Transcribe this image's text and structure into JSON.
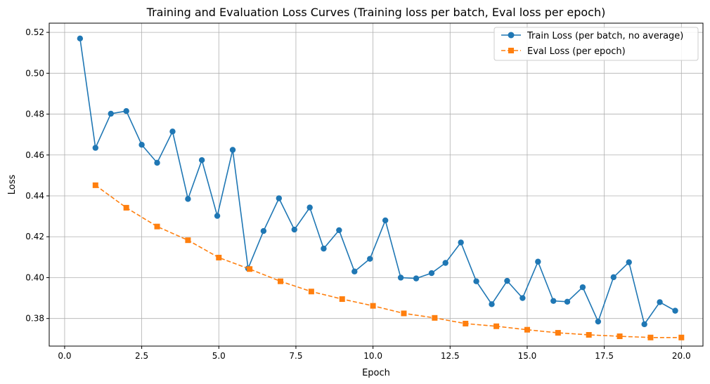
{
  "chart_data": {
    "type": "line",
    "title": "Training and Evaluation Loss Curves (Training loss per batch, Eval loss per epoch)",
    "xlabel": "Epoch",
    "ylabel": "Loss",
    "xlim": [
      -0.5,
      20.7
    ],
    "ylim": [
      0.3665,
      0.5245
    ],
    "xticks": [
      0.0,
      2.5,
      5.0,
      7.5,
      10.0,
      12.5,
      15.0,
      17.5,
      20.0
    ],
    "xtick_labels": [
      "0.0",
      "2.5",
      "5.0",
      "7.5",
      "10.0",
      "12.5",
      "15.0",
      "17.5",
      "20.0"
    ],
    "yticks": [
      0.38,
      0.4,
      0.42,
      0.44,
      0.46,
      0.48,
      0.5,
      0.52
    ],
    "ytick_labels": [
      "0.38",
      "0.40",
      "0.42",
      "0.44",
      "0.46",
      "0.48",
      "0.50",
      "0.52"
    ],
    "grid": true,
    "legend_position": "top-right",
    "series": [
      {
        "name": "Train Loss (per batch, no average)",
        "color": "#1f77b4",
        "line_style": "solid",
        "marker": "circle",
        "x": [
          0.5,
          1.0,
          1.5,
          2.0,
          2.5,
          3.0,
          3.5,
          4.0,
          4.45,
          4.95,
          5.45,
          5.95,
          6.45,
          6.95,
          7.45,
          7.95,
          8.4,
          8.9,
          9.4,
          9.9,
          10.4,
          10.9,
          11.4,
          11.9,
          12.35,
          12.85,
          13.35,
          13.85,
          14.35,
          14.85,
          15.35,
          15.85,
          16.3,
          16.8,
          17.3,
          17.8,
          18.3,
          18.8,
          19.3,
          19.8
        ],
        "values": [
          0.517,
          0.4635,
          0.4802,
          0.4815,
          0.465,
          0.4562,
          0.4715,
          0.4385,
          0.4575,
          0.4302,
          0.4625,
          0.4045,
          0.4228,
          0.4388,
          0.4235,
          0.4343,
          0.4142,
          0.4232,
          0.403,
          0.4092,
          0.428,
          0.4,
          0.3996,
          0.4022,
          0.4072,
          0.4172,
          0.3982,
          0.387,
          0.3984,
          0.39,
          0.4078,
          0.3886,
          0.3882,
          0.3953,
          0.3785,
          0.4002,
          0.4075,
          0.3772,
          0.388,
          0.3838
        ]
      },
      {
        "name": "Eval Loss (per epoch)",
        "color": "#ff7f0e",
        "line_style": "dashed",
        "marker": "square",
        "x": [
          1,
          2,
          3,
          4,
          5,
          6,
          7,
          8,
          9,
          10,
          11,
          12,
          13,
          14,
          15,
          16,
          17,
          18,
          19,
          20
        ],
        "values": [
          0.4452,
          0.4342,
          0.425,
          0.4183,
          0.4098,
          0.4042,
          0.3982,
          0.3932,
          0.3895,
          0.3862,
          0.3825,
          0.3803,
          0.3775,
          0.3762,
          0.3745,
          0.373,
          0.372,
          0.3713,
          0.3707,
          0.3707
        ]
      }
    ]
  }
}
